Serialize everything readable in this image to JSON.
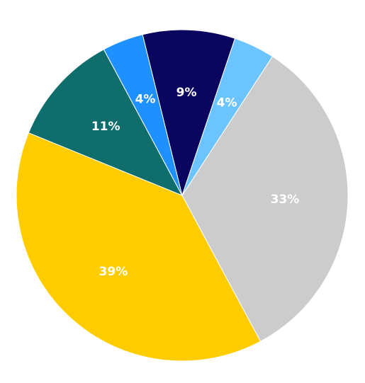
{
  "chart_data": {
    "type": "pie",
    "slices": [
      {
        "value": 33,
        "label": "33%",
        "color": "#cccccc"
      },
      {
        "value": 39,
        "label": "39%",
        "color": "#ffcc00"
      },
      {
        "value": 11,
        "label": "11%",
        "color": "#0f6e6c"
      },
      {
        "value": 4,
        "label": "4%",
        "color": "#1e90ff"
      },
      {
        "value": 9,
        "label": "9%",
        "color": "#0a0660"
      },
      {
        "value": 4,
        "label": "4%",
        "color": "#6cc4ff"
      }
    ],
    "legend": "none"
  }
}
